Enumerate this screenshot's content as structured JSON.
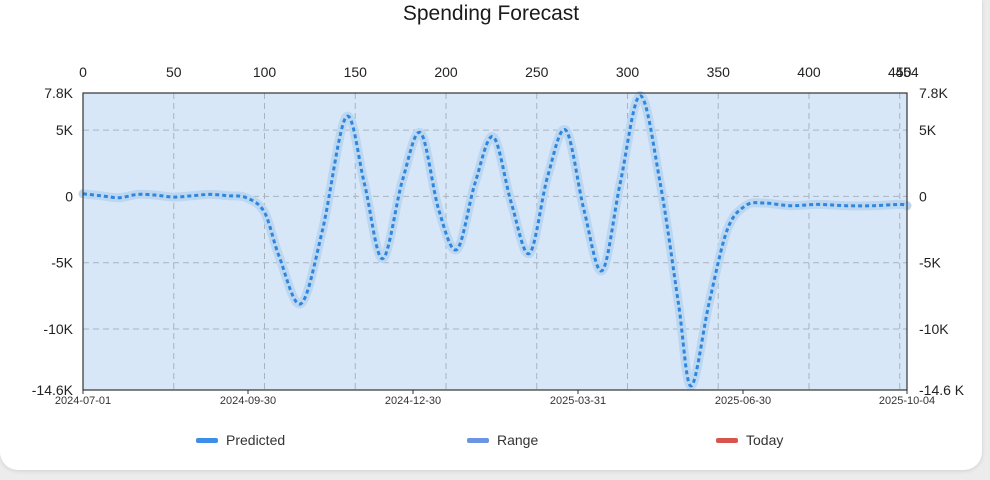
{
  "chart_data": {
    "type": "line",
    "title": "Spending Forecast",
    "x_top_range": [
      0,
      454
    ],
    "x_top_ticks": [
      "0",
      "50",
      "100",
      "150",
      "200",
      "250",
      "300",
      "350",
      "400",
      "450",
      "454"
    ],
    "x_bottom_ticks": [
      "2024-07-01",
      "2024-09-30",
      "2024-12-30",
      "2025-03-31",
      "2025-06-30",
      "2025-10-04"
    ],
    "ylim": [
      -14600,
      7800
    ],
    "y_ticks": [
      "7.8K",
      "5K",
      "0",
      "-5K",
      "-10K",
      "-14.6K"
    ],
    "y_right_ticks": [
      "7.8K",
      "5K",
      "0",
      "-5K",
      "-10K",
      "-14.6 K"
    ],
    "grid": true,
    "legend_position": "bottom",
    "legend": [
      {
        "label": "Predicted",
        "color": "#3d8ee8"
      },
      {
        "label": "Range",
        "color": "#6b95e2"
      },
      {
        "label": "Today",
        "color": "#d9544d"
      }
    ],
    "series": [
      {
        "name": "Predicted",
        "style": "dotted",
        "color": "#2f86dc",
        "x": [
          0,
          10,
          20,
          30,
          40,
          50,
          60,
          70,
          80,
          90,
          100,
          108,
          120,
          132,
          145,
          155,
          165,
          176,
          186,
          196,
          206,
          216,
          226,
          236,
          246,
          256,
          266,
          276,
          286,
          296,
          307,
          318,
          328,
          335,
          345,
          355,
          365,
          375,
          390,
          405,
          420,
          435,
          450,
          454
        ],
        "y": [
          200,
          50,
          -100,
          150,
          100,
          -50,
          50,
          150,
          50,
          -100,
          -1200,
          -4500,
          -8100,
          -2500,
          6000,
          1000,
          -4700,
          1200,
          4800,
          -1000,
          -4000,
          1000,
          4500,
          -500,
          -4300,
          1500,
          5000,
          -1000,
          -5600,
          1000,
          7600,
          1000,
          -8000,
          -14300,
          -8000,
          -2500,
          -700,
          -500,
          -700,
          -600,
          -700,
          -700,
          -600,
          -700
        ]
      }
    ]
  },
  "colors": {
    "plot_bg": "#d7e7f8",
    "range_band": "#bcd7f2",
    "line": "#2f86dc",
    "grid": "#a9b4bf"
  }
}
